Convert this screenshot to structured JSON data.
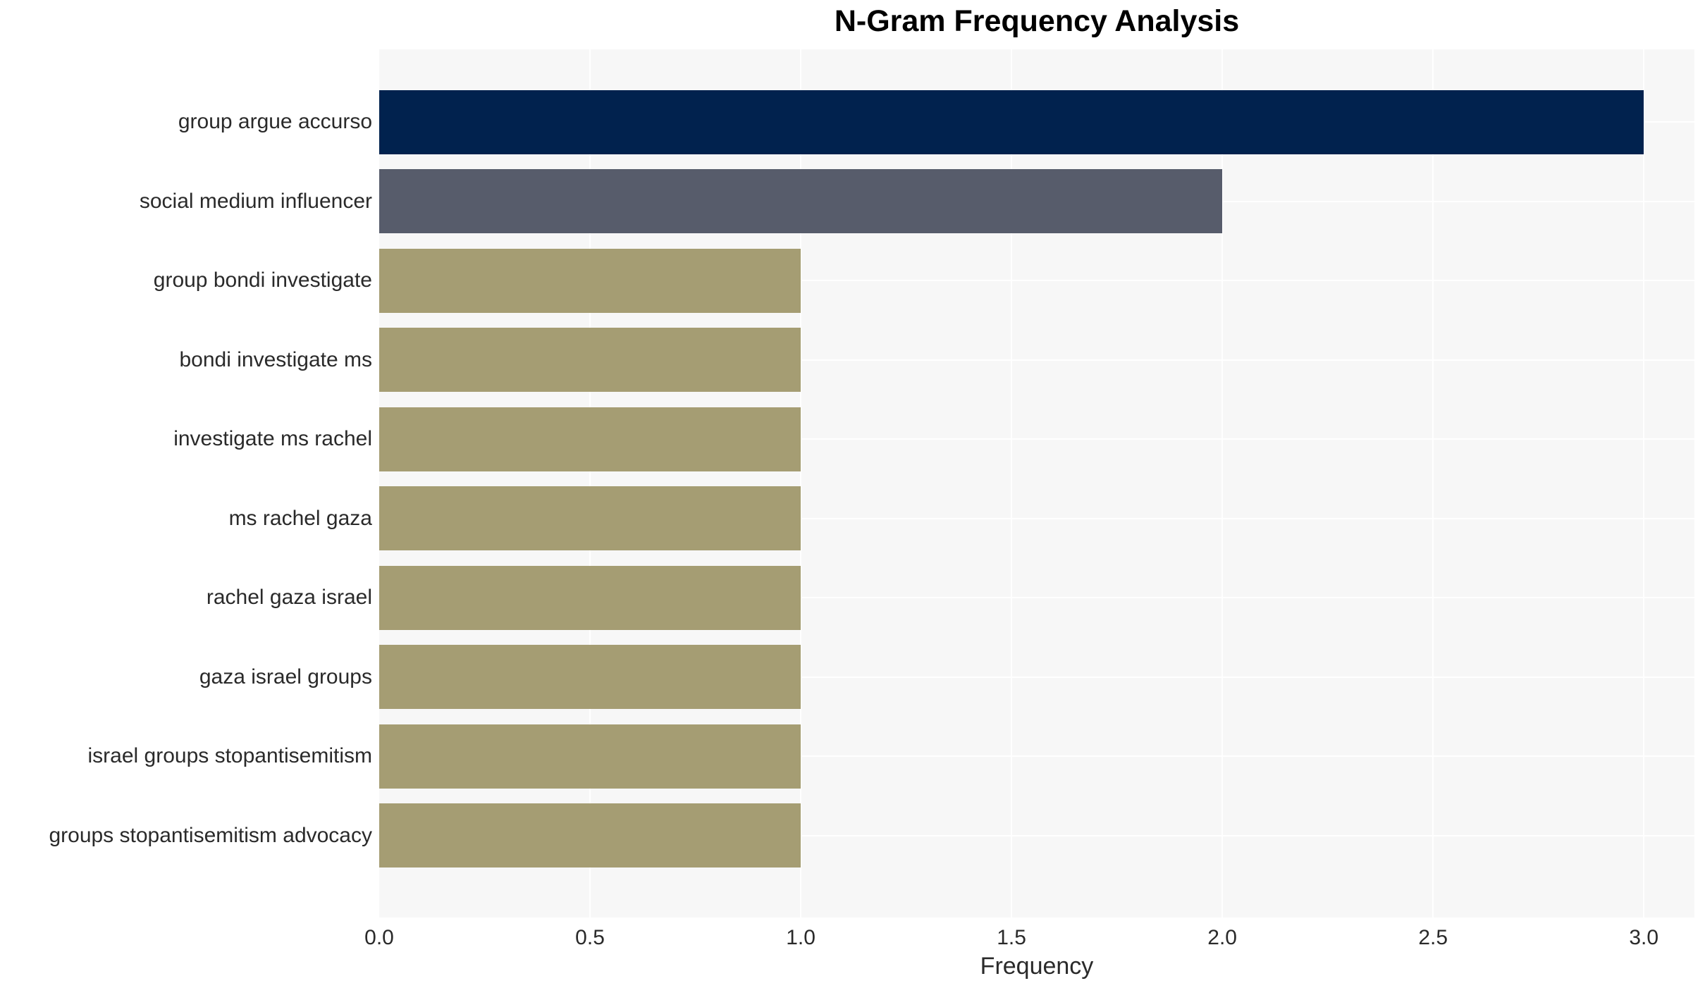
{
  "page": {
    "background_color": "#ffffff"
  },
  "chart_data": {
    "type": "bar",
    "orientation": "horizontal",
    "title": "N-Gram Frequency Analysis",
    "xlabel": "Frequency",
    "ylabel": "",
    "categories": [
      "group argue accurso",
      "social medium influencer",
      "group bondi investigate",
      "bondi investigate ms",
      "investigate ms rachel",
      "ms rachel gaza",
      "rachel gaza israel",
      "gaza israel groups",
      "israel groups stopantisemitism",
      "groups stopantisemitism advocacy"
    ],
    "values": [
      3,
      2,
      1,
      1,
      1,
      1,
      1,
      1,
      1,
      1
    ],
    "bar_colors": [
      "#01224e",
      "#575c6b",
      "#a59d73",
      "#a59d73",
      "#a59d73",
      "#a59d73",
      "#a59d73",
      "#a59d73",
      "#a59d73",
      "#a59d73"
    ],
    "xlim": [
      0,
      3.12
    ],
    "xticks": [
      0,
      0.5,
      1,
      1.5,
      2,
      2.5,
      3
    ],
    "xtick_labels": [
      "0.0",
      "0.5",
      "1.0",
      "1.5",
      "2.0",
      "2.5",
      "3.0"
    ],
    "grid": true,
    "legend": false,
    "plot_background_color": "#f7f7f7",
    "gridline_color": "#ffffff",
    "text_color": "#2a2a2a",
    "title_color": "#000000"
  }
}
